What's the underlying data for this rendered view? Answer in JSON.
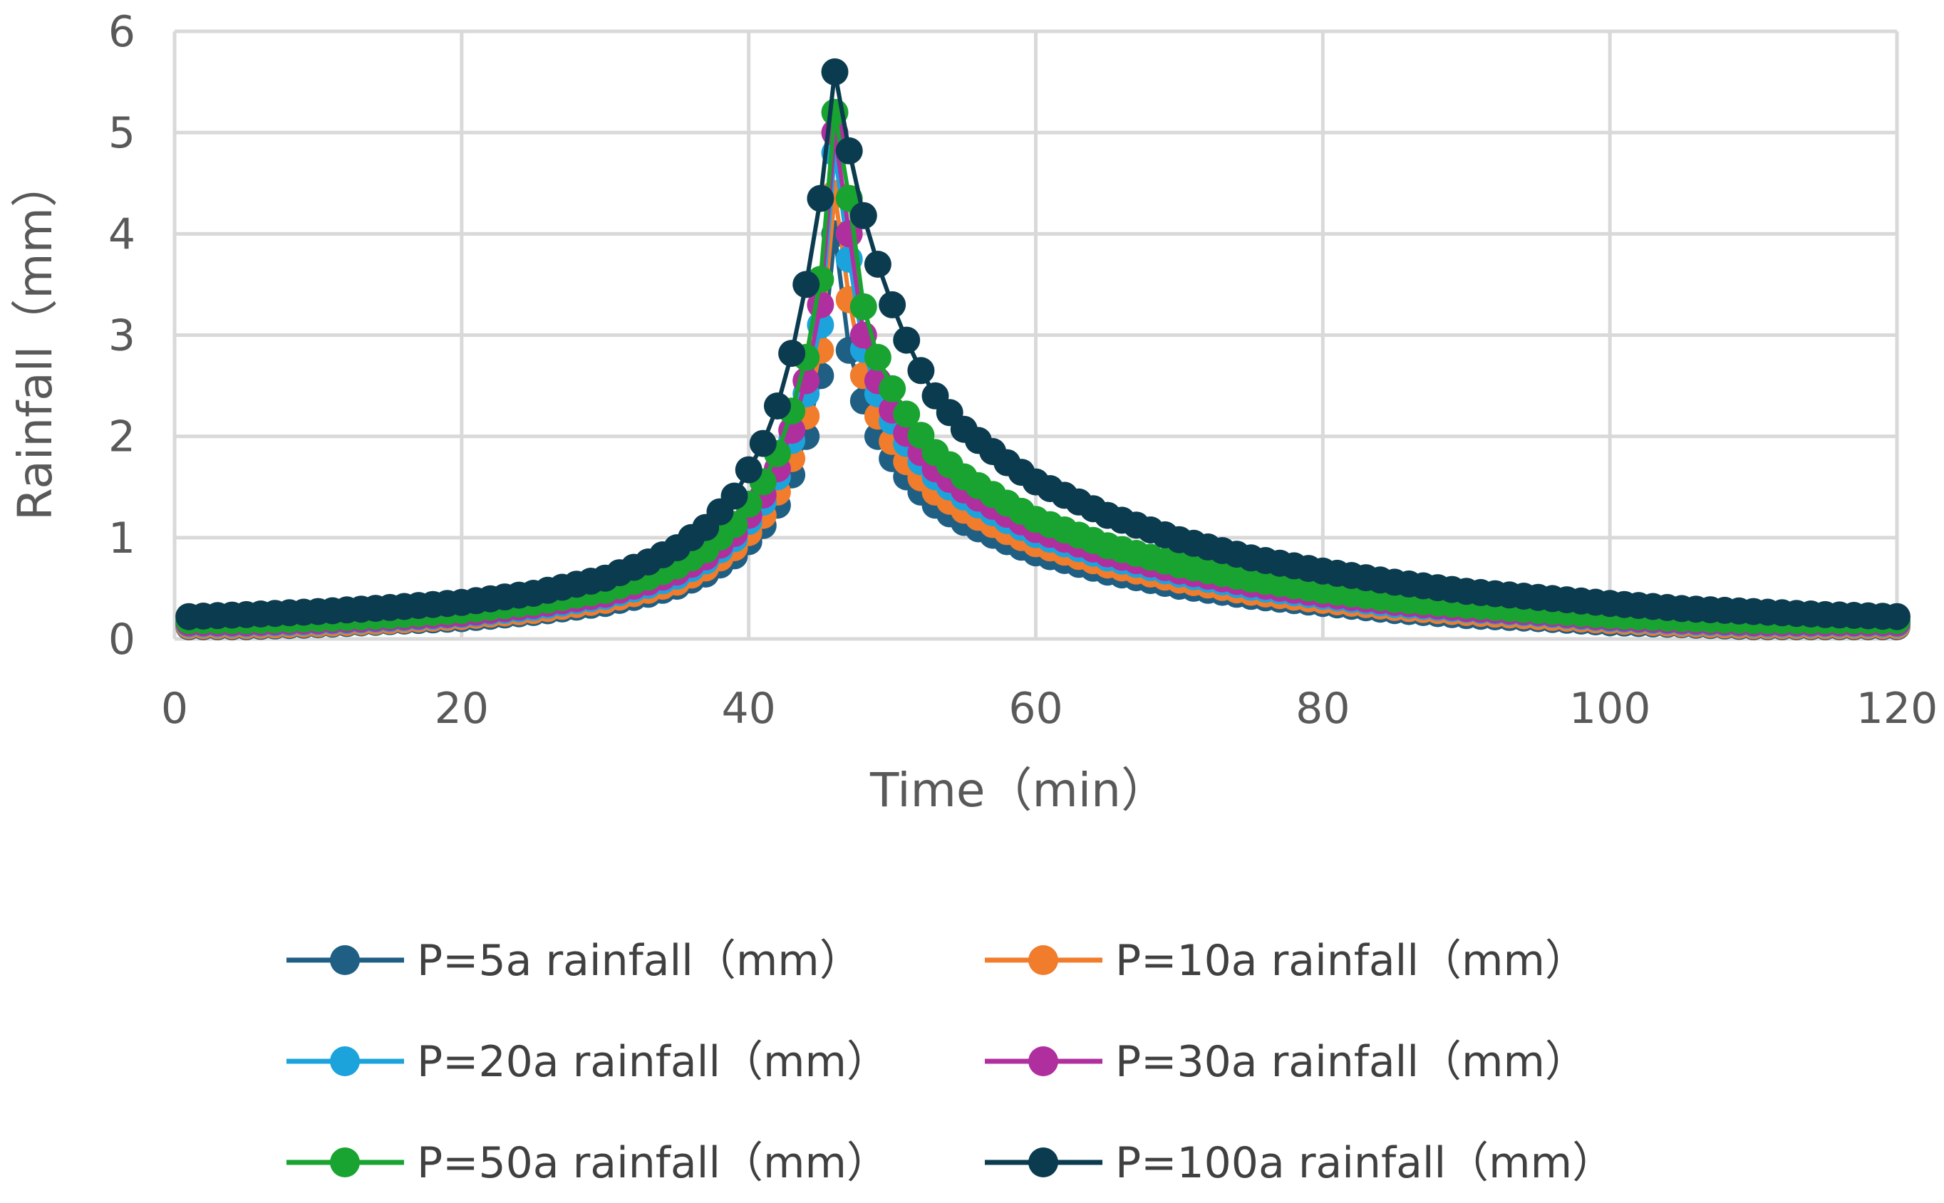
{
  "chart_data": {
    "type": "line",
    "title": "",
    "xlabel": "Time（min）",
    "ylabel": "Rainfall（mm）",
    "xlim": [
      0,
      120
    ],
    "ylim": [
      0,
      6
    ],
    "xticks": [
      0,
      20,
      40,
      60,
      80,
      100,
      120
    ],
    "yticks": [
      0,
      1,
      2,
      3,
      4,
      5,
      6
    ],
    "grid": true,
    "legend_position": "bottom",
    "x": [
      1,
      5,
      10,
      15,
      20,
      25,
      30,
      33,
      35,
      37,
      39,
      40,
      41,
      42,
      43,
      44,
      45,
      46,
      47,
      48,
      49,
      50,
      51,
      52,
      53,
      55,
      58,
      60,
      65,
      70,
      75,
      80,
      85,
      90,
      95,
      100,
      105,
      110,
      115,
      120
    ],
    "series": [
      {
        "name": "P=5a rainfall（mm）",
        "color": "#1f5f84",
        "values": [
          0.12,
          0.12,
          0.14,
          0.17,
          0.2,
          0.26,
          0.35,
          0.44,
          0.52,
          0.64,
          0.82,
          0.96,
          1.12,
          1.32,
          1.62,
          2.0,
          2.6,
          4.0,
          2.85,
          2.35,
          2.0,
          1.78,
          1.6,
          1.45,
          1.32,
          1.15,
          0.96,
          0.85,
          0.66,
          0.52,
          0.42,
          0.35,
          0.28,
          0.23,
          0.2,
          0.16,
          0.14,
          0.12,
          0.12,
          0.12
        ]
      },
      {
        "name": "P=10a rainfall（mm）",
        "color": "#f07c2c",
        "values": [
          0.13,
          0.13,
          0.15,
          0.18,
          0.22,
          0.28,
          0.38,
          0.48,
          0.56,
          0.7,
          0.9,
          1.05,
          1.22,
          1.45,
          1.78,
          2.2,
          2.85,
          4.4,
          3.35,
          2.6,
          2.2,
          1.95,
          1.75,
          1.59,
          1.45,
          1.27,
          1.06,
          0.94,
          0.73,
          0.58,
          0.46,
          0.38,
          0.31,
          0.26,
          0.22,
          0.18,
          0.15,
          0.13,
          0.13,
          0.13
        ]
      },
      {
        "name": "P=20a rainfall（mm）",
        "color": "#1ca3dc",
        "values": [
          0.15,
          0.15,
          0.17,
          0.2,
          0.24,
          0.31,
          0.42,
          0.53,
          0.62,
          0.77,
          0.99,
          1.16,
          1.35,
          1.6,
          1.96,
          2.42,
          3.1,
          4.8,
          3.75,
          2.86,
          2.42,
          2.15,
          1.93,
          1.75,
          1.6,
          1.4,
          1.17,
          1.03,
          0.8,
          0.64,
          0.51,
          0.42,
          0.34,
          0.29,
          0.25,
          0.2,
          0.17,
          0.15,
          0.15,
          0.15
        ]
      },
      {
        "name": "P=30a rainfall（mm）",
        "color": "#b02f9e",
        "values": [
          0.16,
          0.16,
          0.18,
          0.21,
          0.25,
          0.33,
          0.44,
          0.56,
          0.66,
          0.81,
          1.04,
          1.22,
          1.42,
          1.68,
          2.06,
          2.55,
          3.3,
          5.0,
          4.0,
          3.0,
          2.55,
          2.26,
          2.03,
          1.84,
          1.68,
          1.47,
          1.23,
          1.08,
          0.84,
          0.67,
          0.54,
          0.44,
          0.36,
          0.3,
          0.26,
          0.21,
          0.18,
          0.16,
          0.16,
          0.16
        ]
      },
      {
        "name": "P=50a rainfall（mm）",
        "color": "#19a330",
        "values": [
          0.18,
          0.18,
          0.2,
          0.23,
          0.28,
          0.36,
          0.48,
          0.61,
          0.72,
          0.88,
          1.13,
          1.33,
          1.55,
          1.83,
          2.25,
          2.78,
          3.55,
          5.2,
          4.35,
          3.28,
          2.78,
          2.47,
          2.22,
          2.01,
          1.84,
          1.6,
          1.34,
          1.18,
          0.92,
          0.73,
          0.59,
          0.48,
          0.39,
          0.33,
          0.28,
          0.23,
          0.2,
          0.18,
          0.18,
          0.18
        ]
      },
      {
        "name": "P=100a rainfall（mm）",
        "color": "#0b3b4f",
        "values": [
          0.22,
          0.24,
          0.27,
          0.31,
          0.36,
          0.45,
          0.6,
          0.76,
          0.9,
          1.1,
          1.41,
          1.67,
          1.93,
          2.3,
          2.82,
          3.5,
          4.35,
          5.6,
          4.82,
          4.18,
          3.7,
          3.3,
          2.95,
          2.65,
          2.4,
          2.07,
          1.74,
          1.55,
          1.22,
          0.98,
          0.8,
          0.67,
          0.56,
          0.47,
          0.41,
          0.35,
          0.3,
          0.27,
          0.24,
          0.22
        ]
      }
    ]
  }
}
